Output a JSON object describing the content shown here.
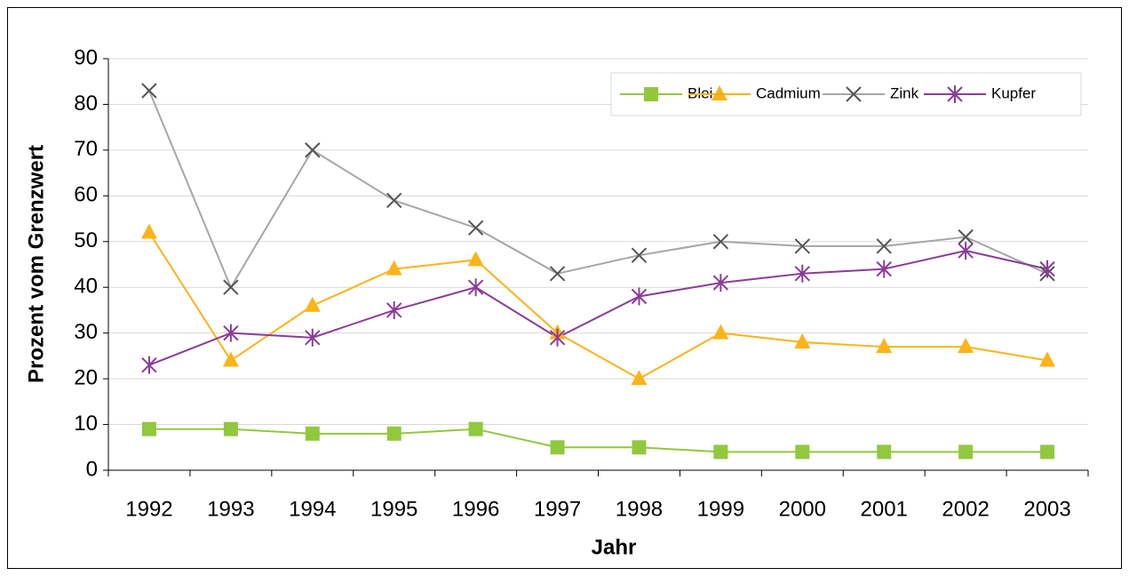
{
  "chart_data": {
    "type": "line",
    "x_label": "Jahr",
    "y_label": "Prozent vom Grenzwert",
    "categories": [
      "1992",
      "1993",
      "1994",
      "1995",
      "1996",
      "1997",
      "1998",
      "1999",
      "2000",
      "2001",
      "2002",
      "2003"
    ],
    "series": [
      {
        "name": "Blei",
        "color": "#92c83e",
        "marker": "square",
        "values": [
          9,
          9,
          8,
          8,
          9,
          5,
          5,
          4,
          4,
          4,
          4,
          4
        ]
      },
      {
        "name": "Cadmium",
        "color": "#fbb418",
        "marker": "triangle",
        "values": [
          52,
          24,
          36,
          44,
          46,
          30,
          20,
          30,
          28,
          27,
          27,
          24
        ]
      },
      {
        "name": "Zink",
        "color": "#a6a6a6",
        "marker": "x",
        "values": [
          83,
          40,
          70,
          59,
          53,
          43,
          47,
          50,
          49,
          49,
          51,
          43
        ]
      },
      {
        "name": "Kupfer",
        "color": "#8b3c99",
        "marker": "asterisk",
        "values": [
          23,
          30,
          29,
          35,
          40,
          29,
          38,
          41,
          43,
          44,
          48,
          44
        ]
      }
    ],
    "ylim": [
      0,
      90
    ],
    "yticks": [
      0,
      10,
      20,
      30,
      40,
      50,
      60,
      70,
      80,
      90
    ],
    "grid": true,
    "legend": "upper right"
  }
}
